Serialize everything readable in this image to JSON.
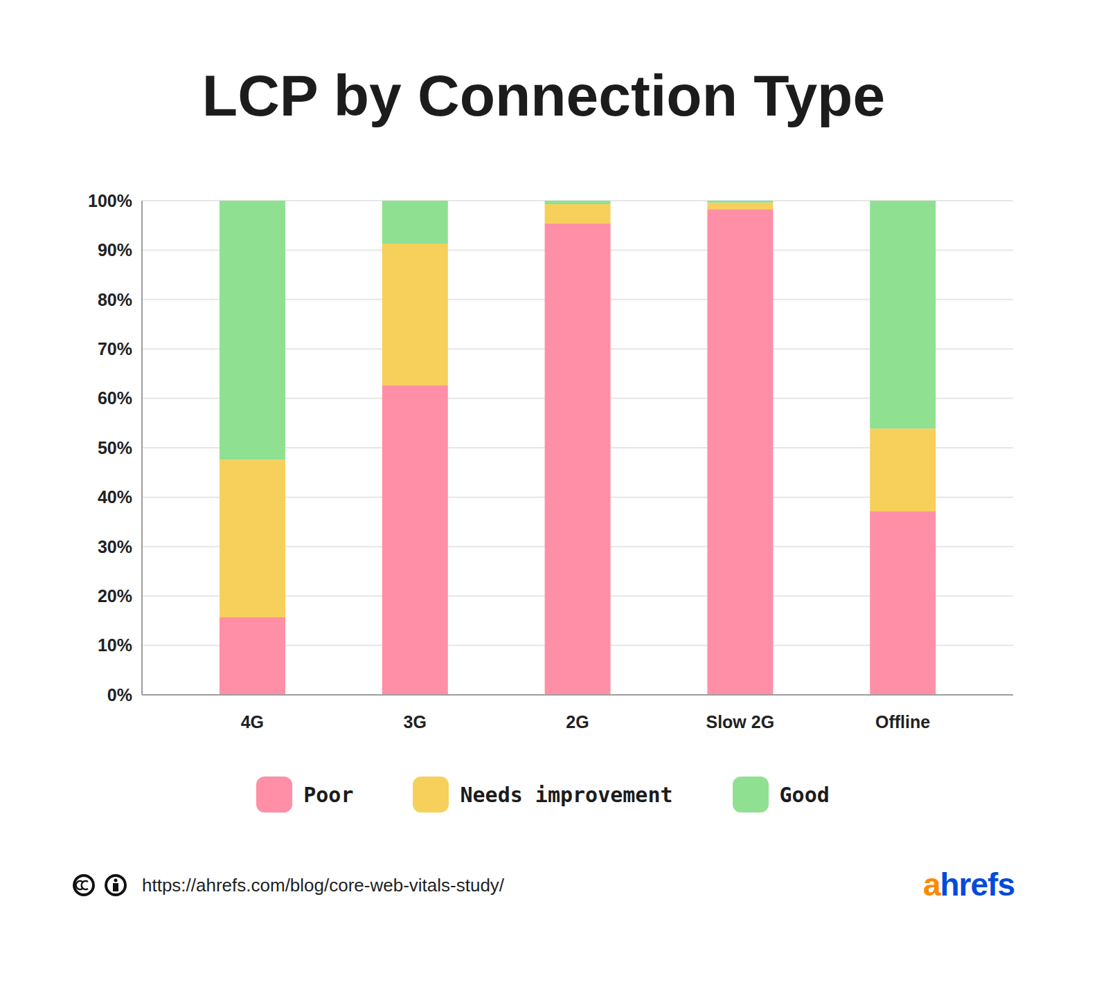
{
  "chart_data": {
    "type": "bar",
    "title": "LCP by Connection Type",
    "categories": [
      "4G",
      "3G",
      "2G",
      "Slow 2G",
      "Offline"
    ],
    "series": [
      {
        "name": "Poor",
        "color": "#ff8fa6",
        "values": [
          15.7,
          62.6,
          95.4,
          98.3,
          37.1
        ]
      },
      {
        "name": "Needs improvement",
        "color": "#f6d05a",
        "values": [
          31.9,
          28.7,
          3.9,
          1.3,
          16.8
        ]
      },
      {
        "name": "Good",
        "color": "#90e092",
        "values": [
          52.4,
          8.7,
          0.7,
          0.4,
          46.1
        ]
      }
    ],
    "stacked": true,
    "ylim": [
      0,
      100
    ],
    "yticks": [
      {
        "value": 0,
        "label": "0%"
      },
      {
        "value": 10,
        "label": "10%"
      },
      {
        "value": 20,
        "label": "20%"
      },
      {
        "value": 30,
        "label": "30%"
      },
      {
        "value": 40,
        "label": "40%"
      },
      {
        "value": 50,
        "label": "50%"
      },
      {
        "value": 60,
        "label": "60%"
      },
      {
        "value": 70,
        "label": "70%"
      },
      {
        "value": 80,
        "label": "80%"
      },
      {
        "value": 90,
        "label": "90%"
      },
      {
        "value": 100,
        "label": "100%"
      }
    ],
    "grid": true,
    "legend": "bottom",
    "source": "https://ahrefs.com/blog/core-web-vitals-study/",
    "brand": "ahrefs"
  }
}
